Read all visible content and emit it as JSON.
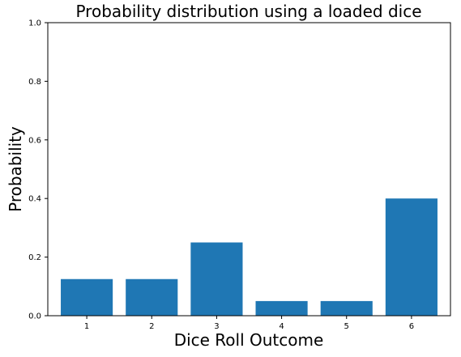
{
  "chart_data": {
    "type": "bar",
    "title": "Probability distribution using a loaded dice",
    "xlabel": "Dice Roll Outcome",
    "ylabel": "Probability",
    "categories": [
      "1",
      "2",
      "3",
      "4",
      "5",
      "6"
    ],
    "values": [
      0.125,
      0.125,
      0.25,
      0.05,
      0.05,
      0.4
    ],
    "ylim": [
      0,
      1.0
    ],
    "yticks": [
      "0.0",
      "0.2",
      "0.4",
      "0.6",
      "0.8",
      "1.0"
    ],
    "bar_color": "#1f77b4",
    "grid": false,
    "legend": "none"
  }
}
